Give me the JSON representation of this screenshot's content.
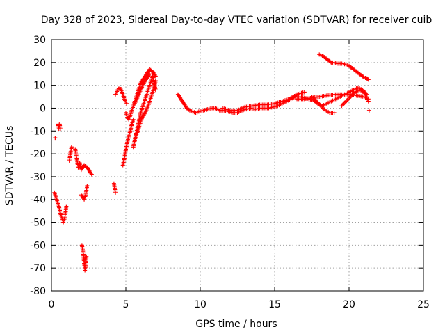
{
  "chart_data": {
    "type": "scatter",
    "title": "Day 328 of 2023, Sidereal Day-to-day VTEC variation (SDTVAR) for receiver cuib",
    "xlabel": "GPS time / hours",
    "ylabel": "SDTVAR / TECUs",
    "xlim": [
      0,
      25
    ],
    "ylim": [
      -80,
      30
    ],
    "xticks": [
      "0",
      "5",
      "10",
      "15",
      "20",
      "25"
    ],
    "yticks": [
      "30",
      "20",
      "10",
      "0",
      "-10",
      "-20",
      "-30",
      "-40",
      "-50",
      "-60",
      "-70",
      "-80"
    ],
    "grid": true,
    "marker": "plus",
    "series_color": "#ff0000",
    "segments": [
      {
        "x": [
          0.2,
          0.35,
          0.5,
          0.6,
          0.7,
          0.8,
          0.9,
          1.0
        ],
        "y": [
          -37,
          -40,
          -43,
          -46,
          -48,
          -50,
          -48,
          -43
        ]
      },
      {
        "x": [
          0.25
        ],
        "y": [
          -13
        ]
      },
      {
        "x": [
          0.45,
          0.5,
          0.55,
          0.6
        ],
        "y": [
          -7,
          -9,
          -7,
          -9
        ]
      },
      {
        "x": [
          1.2,
          1.3,
          1.35
        ],
        "y": [
          -23,
          -19,
          -17
        ]
      },
      {
        "x": [
          1.6,
          1.7,
          1.8,
          1.9,
          2.0,
          2.2,
          2.4,
          2.6,
          2.7
        ],
        "y": [
          -18,
          -22,
          -26,
          -24,
          -27,
          -25,
          -26,
          -28,
          -29
        ]
      },
      {
        "x": [
          2.0,
          2.1,
          2.2,
          2.3,
          2.4
        ],
        "y": [
          -38,
          -39,
          -40,
          -38,
          -34
        ]
      },
      {
        "x": [
          2.05,
          2.1,
          2.15,
          2.2,
          2.25,
          2.3,
          2.35
        ],
        "y": [
          -60,
          -62,
          -64,
          -68,
          -71,
          -69,
          -65
        ]
      },
      {
        "x": [
          4.2,
          4.25,
          4.3
        ],
        "y": [
          -33,
          -35,
          -37
        ]
      },
      {
        "x": [
          4.3,
          4.45,
          4.6,
          4.75,
          4.9,
          5.05
        ],
        "y": [
          6,
          8,
          9,
          7,
          4,
          2
        ]
      },
      {
        "x": [
          4.8,
          4.9,
          5.0,
          5.1,
          5.2,
          5.3,
          5.4,
          5.5
        ],
        "y": [
          -25,
          -22,
          -18,
          -15,
          -12,
          -10,
          -7,
          -5
        ]
      },
      {
        "x": [
          5.0,
          5.1,
          5.2,
          5.3,
          5.4,
          5.5,
          5.6,
          5.7,
          5.8,
          5.9,
          6.0,
          6.2,
          6.4,
          6.6,
          6.8,
          7.0
        ],
        "y": [
          -2,
          -4,
          -5,
          -3,
          -1,
          1,
          3,
          5,
          7,
          9,
          11,
          13,
          15,
          17,
          16,
          14
        ]
      },
      {
        "x": [
          5.5,
          5.6,
          5.7,
          5.8,
          5.9,
          6.0,
          6.1,
          6.2,
          6.3,
          6.4,
          6.5,
          6.6,
          6.7,
          6.8,
          6.9,
          7.0
        ],
        "y": [
          -17,
          -14,
          -11,
          -8,
          -5,
          -2,
          0,
          2,
          4,
          6,
          8,
          10,
          12,
          14,
          11,
          8
        ]
      },
      {
        "x": [
          5.7,
          5.9,
          6.1,
          6.3,
          6.5,
          6.7,
          6.9,
          7.0
        ],
        "y": [
          -12,
          -8,
          -4,
          -2,
          1,
          5,
          9,
          12
        ]
      },
      {
        "x": [
          5.6,
          5.8,
          6.0,
          6.2,
          6.4,
          6.6
        ],
        "y": [
          2,
          5,
          8,
          11,
          13,
          15
        ]
      },
      {
        "x": [
          8.5,
          8.7,
          8.9,
          9.1,
          9.3,
          9.5,
          9.7,
          9.9,
          10.2,
          10.5,
          10.8,
          11.0,
          11.3,
          11.6,
          11.9,
          12.2,
          12.5,
          12.8,
          13.1,
          13.4,
          13.7,
          14.0,
          14.3,
          14.6,
          14.9,
          15.2,
          15.5,
          15.8,
          16.1,
          16.4,
          16.7,
          17.0,
          17.3,
          17.6,
          17.9,
          18.2,
          18.5,
          18.8,
          19.1,
          19.4,
          19.7,
          20.0,
          20.3,
          20.6,
          20.9,
          21.2
        ],
        "y": [
          6,
          4,
          2,
          0,
          -1,
          -1.5,
          -2,
          -1.5,
          -1,
          -0.5,
          0,
          0,
          -1,
          -1,
          -1.5,
          -2,
          -2,
          -1,
          -0.5,
          0,
          -0.5,
          0,
          0,
          0,
          0.5,
          1,
          2,
          3,
          4,
          5,
          5,
          4.5,
          4,
          3.5,
          2,
          1,
          2,
          3,
          4,
          5,
          6,
          7,
          8,
          9,
          8,
          6
        ]
      },
      {
        "x": [
          11.5,
          12.0,
          12.5,
          13.0,
          13.5,
          14.0,
          14.5,
          15.0,
          15.5,
          16.0,
          16.5,
          17.0
        ],
        "y": [
          0,
          -1,
          -1,
          0.5,
          1,
          1.5,
          1.5,
          2,
          3,
          4,
          6,
          7
        ]
      },
      {
        "x": [
          16.5,
          17.0,
          17.5,
          18.0,
          18.5,
          19.0,
          19.5,
          20.0,
          20.5,
          21.0,
          21.3
        ],
        "y": [
          4,
          4,
          4.5,
          5,
          5.5,
          6,
          6,
          6,
          5.5,
          5,
          4
        ]
      },
      {
        "x": [
          17.5,
          17.8,
          18.1,
          18.4,
          18.7,
          19.0
        ],
        "y": [
          5,
          3,
          1,
          -1,
          -2,
          -2
        ]
      },
      {
        "x": [
          19.5,
          19.8,
          20.1,
          20.4,
          20.7,
          21.0,
          21.3
        ],
        "y": [
          1,
          3,
          5,
          7,
          8,
          7,
          3
        ]
      },
      {
        "x": [
          21.35
        ],
        "y": [
          -1
        ]
      },
      {
        "x": [
          18.0,
          18.2,
          18.4,
          18.6,
          18.8,
          19.0,
          19.2,
          19.4,
          19.6,
          19.8,
          20.0,
          20.2,
          20.4,
          20.6,
          20.8,
          21.0,
          21.2,
          21.3
        ],
        "y": [
          23.5,
          23,
          22,
          21,
          20,
          20,
          19.5,
          19.5,
          19.5,
          19,
          18.5,
          17.5,
          16.5,
          15.5,
          14.5,
          13.5,
          13,
          12.5
        ]
      }
    ]
  }
}
